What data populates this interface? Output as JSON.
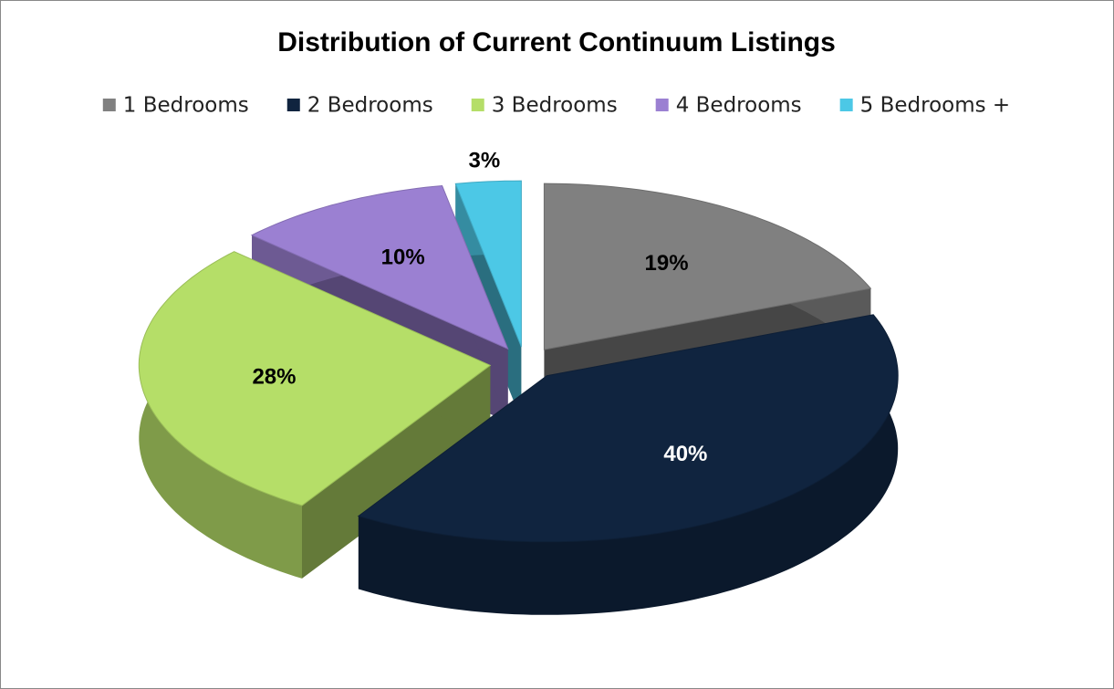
{
  "chart_data": {
    "type": "pie3d",
    "title": "Distribution of Current Continuum Listings",
    "categories": [
      "1 Bedrooms",
      "2 Bedrooms",
      "3 Bedrooms",
      "4 Bedrooms",
      "5 Bedrooms +"
    ],
    "values": [
      19,
      40,
      28,
      10,
      3
    ],
    "value_labels": [
      "19%",
      "40%",
      "28%",
      "10%",
      "3%"
    ],
    "colors": [
      "#808080",
      "#10243f",
      "#b5de68",
      "#9b80d2",
      "#4cc8e6"
    ],
    "legend": "top"
  }
}
